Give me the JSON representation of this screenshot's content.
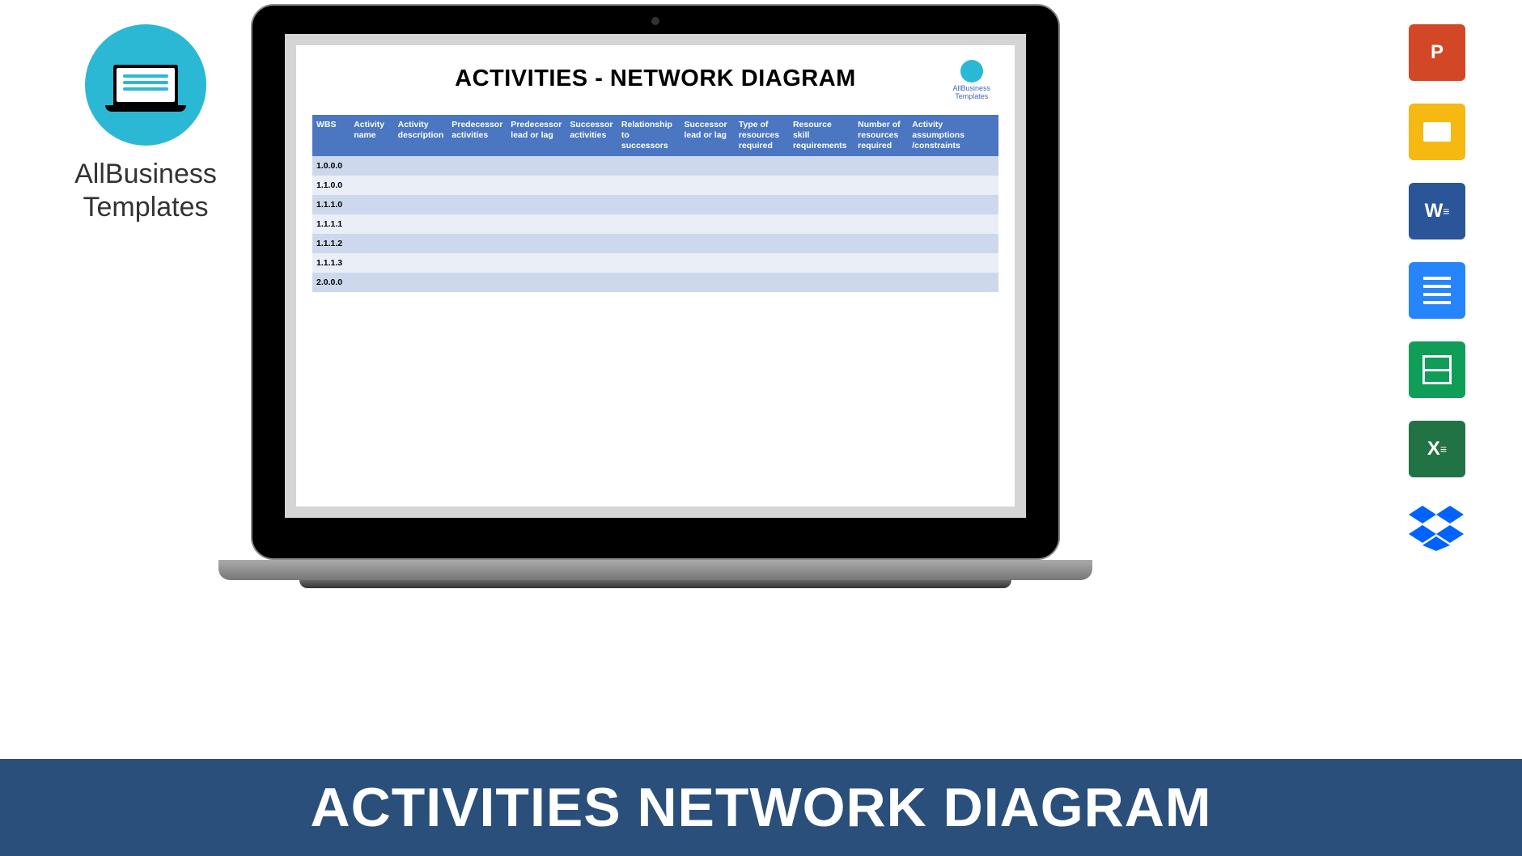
{
  "brand": {
    "name_line1": "AllBusiness",
    "name_line2": "Templates",
    "doc_logo_label": "AllBusiness\nTemplates"
  },
  "document": {
    "title": "ACTIVITIES - NETWORK DIAGRAM",
    "table": {
      "columns": [
        "WBS",
        "Activity name",
        "Activity description",
        "Predecessor activities",
        "Predecessor lead or lag",
        "Successor activities",
        "Relationship to successors",
        "Successor lead or lag",
        "Type of resources required",
        "Resource skill requirements",
        "Number of resources required",
        "Activity assumptions /constraints"
      ],
      "col_widths_pct": [
        5.5,
        6.5,
        7.2,
        8.5,
        8.5,
        7.5,
        9.2,
        8,
        8,
        9.5,
        8,
        13.6
      ],
      "rows": [
        [
          "1.0.0.0",
          "",
          "",
          "",
          "",
          "",
          "",
          "",
          "",
          "",
          "",
          ""
        ],
        [
          "1.1.0.0",
          "",
          "",
          "",
          "",
          "",
          "",
          "",
          "",
          "",
          "",
          ""
        ],
        [
          "1.1.1.0",
          "",
          "",
          "",
          "",
          "",
          "",
          "",
          "",
          "",
          "",
          ""
        ],
        [
          "1.1.1.1",
          "",
          "",
          "",
          "",
          "",
          "",
          "",
          "",
          "",
          "",
          ""
        ],
        [
          "1.1.1.2",
          "",
          "",
          "",
          "",
          "",
          "",
          "",
          "",
          "",
          "",
          ""
        ],
        [
          "1.1.1.3",
          "",
          "",
          "",
          "",
          "",
          "",
          "",
          "",
          "",
          "",
          ""
        ],
        [
          "2.0.0.0",
          "",
          "",
          "",
          "",
          "",
          "",
          "",
          "",
          "",
          "",
          ""
        ]
      ],
      "header_bg": "#4a76c2",
      "header_color": "#ffffff",
      "row_odd_bg": "#ced8ec",
      "row_even_bg": "#e9eef7",
      "font_size_pt": 8
    }
  },
  "banner": {
    "text": "ACTIVITIES NETWORK DIAGRAM",
    "bg_color": "#2a4f7a",
    "text_color": "#ffffff"
  },
  "icons": [
    {
      "name": "powerpoint-icon",
      "label": "P",
      "bg": "#d24726"
    },
    {
      "name": "google-slides-icon",
      "label": "",
      "bg": "#f5b912"
    },
    {
      "name": "word-icon",
      "label": "W",
      "bg": "#2a5699"
    },
    {
      "name": "google-docs-icon",
      "label": "",
      "bg": "#2684fc"
    },
    {
      "name": "google-sheets-icon",
      "label": "",
      "bg": "#0f9d58"
    },
    {
      "name": "excel-icon",
      "label": "X",
      "bg": "#217346"
    },
    {
      "name": "dropbox-icon",
      "label": "",
      "bg": "transparent"
    }
  ]
}
